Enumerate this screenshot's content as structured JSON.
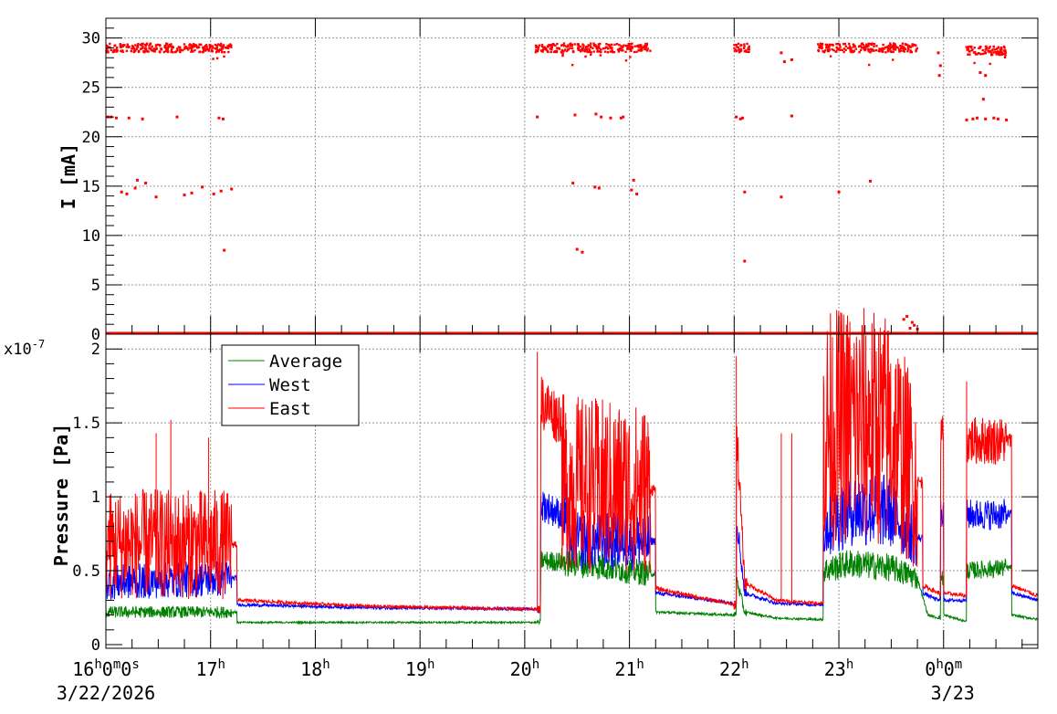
{
  "chart_data": [
    {
      "type": "scatter",
      "panel": "top",
      "ylabel": "I [mA]",
      "ylim": [
        0,
        32
      ],
      "yticks": [
        "0",
        "5",
        "10",
        "15",
        "20",
        "25",
        "30"
      ],
      "xlim_hours": [
        16.0,
        24.9
      ],
      "grid": true,
      "series": [
        {
          "color": "#ff0000",
          "segments": [
            {
              "x": [
                16.0,
                17.2
              ],
              "level": 29
            },
            {
              "x": [
                20.1,
                21.2
              ],
              "level": 29
            },
            {
              "x": [
                22.0,
                22.15
              ],
              "level": 29
            },
            {
              "x": [
                22.8,
                23.75
              ],
              "level": 29
            },
            {
              "x": [
                24.2,
                24.6
              ],
              "level": 28.7
            }
          ],
          "points": [
            [
              16.02,
              22
            ],
            [
              16.05,
              22
            ],
            [
              16.1,
              21.9
            ],
            [
              16.22,
              21.9
            ],
            [
              16.35,
              21.8
            ],
            [
              16.68,
              22
            ],
            [
              17.08,
              21.9
            ],
            [
              17.12,
              21.8
            ],
            [
              16.15,
              14.4
            ],
            [
              16.2,
              14.2
            ],
            [
              16.28,
              14.8
            ],
            [
              16.3,
              15.6
            ],
            [
              16.38,
              15.3
            ],
            [
              16.48,
              13.9
            ],
            [
              16.75,
              14.1
            ],
            [
              16.82,
              14.3
            ],
            [
              16.92,
              14.9
            ],
            [
              17.03,
              14.2
            ],
            [
              17.1,
              14.5
            ],
            [
              17.2,
              14.7
            ],
            [
              17.13,
              8.5
            ],
            [
              20.12,
              22
            ],
            [
              20.48,
              22.2
            ],
            [
              20.68,
              22.3
            ],
            [
              20.73,
              22
            ],
            [
              20.82,
              21.9
            ],
            [
              20.92,
              21.9
            ],
            [
              20.94,
              22
            ],
            [
              20.46,
              15.3
            ],
            [
              20.67,
              14.9
            ],
            [
              20.71,
              14.8
            ],
            [
              21.02,
              14.6
            ],
            [
              21.04,
              15.6
            ],
            [
              21.07,
              14.2
            ],
            [
              20.5,
              8.6
            ],
            [
              20.55,
              8.3
            ],
            [
              22.02,
              22
            ],
            [
              22.06,
              21.8
            ],
            [
              22.08,
              21.9
            ],
            [
              22.1,
              14.4
            ],
            [
              22.1,
              7.4
            ],
            [
              22.45,
              13.9
            ],
            [
              22.55,
              22.1
            ],
            [
              22.45,
              28.5
            ],
            [
              22.48,
              27.6
            ],
            [
              22.55,
              27.8
            ],
            [
              23.0,
              14.4
            ],
            [
              23.3,
              15.5
            ],
            [
              24.22,
              21.7
            ],
            [
              24.28,
              21.8
            ],
            [
              24.32,
              21.9
            ],
            [
              24.38,
              23.8
            ],
            [
              24.4,
              21.8
            ],
            [
              24.48,
              21.9
            ],
            [
              24.52,
              21.8
            ],
            [
              24.6,
              21.7
            ],
            [
              24.4,
              26.2
            ],
            [
              24.35,
              26.5
            ],
            [
              23.95,
              28.5
            ],
            [
              23.97,
              27.2
            ],
            [
              23.96,
              26.2
            ],
            [
              23.62,
              1.5
            ],
            [
              23.65,
              1.8
            ],
            [
              23.7,
              1.2
            ],
            [
              23.72,
              0.9
            ],
            [
              23.75,
              0.5
            ],
            [
              23.68,
              0.6
            ]
          ]
        }
      ]
    },
    {
      "type": "line",
      "panel": "bottom",
      "ylabel": "Pressure [Pa]",
      "yscale_label": "x10",
      "yscale_exp": "-7",
      "ylim": [
        0,
        2.1
      ],
      "yticks": [
        "0",
        "0.5",
        "1",
        "1.5",
        "2"
      ],
      "xlim_hours": [
        16.0,
        24.9
      ],
      "grid": true,
      "legend_position": "top-left",
      "series": [
        {
          "name": "Average",
          "color": "#008000",
          "levels": [
            [
              16.0,
              0.22
            ],
            [
              17.2,
              0.22
            ],
            [
              17.25,
              0.15
            ],
            [
              20.12,
              0.15
            ],
            [
              20.15,
              0.57
            ],
            [
              20.55,
              0.55
            ],
            [
              21.2,
              0.48
            ],
            [
              21.25,
              0.22
            ],
            [
              22.0,
              0.2
            ],
            [
              22.02,
              0.45
            ],
            [
              22.1,
              0.22
            ],
            [
              22.4,
              0.18
            ],
            [
              22.8,
              0.17
            ],
            [
              22.85,
              0.5
            ],
            [
              23.1,
              0.55
            ],
            [
              23.5,
              0.52
            ],
            [
              23.75,
              0.45
            ],
            [
              23.85,
              0.2
            ],
            [
              23.95,
              0.18
            ],
            [
              23.97,
              0.45
            ],
            [
              24.0,
              0.2
            ],
            [
              24.2,
              0.16
            ],
            [
              24.22,
              0.5
            ],
            [
              24.6,
              0.52
            ],
            [
              24.65,
              0.2
            ],
            [
              24.9,
              0.17
            ]
          ]
        },
        {
          "name": "West",
          "color": "#0000ff",
          "levels": [
            [
              16.0,
              0.42
            ],
            [
              17.2,
              0.45
            ],
            [
              17.25,
              0.27
            ],
            [
              18.5,
              0.25
            ],
            [
              20.12,
              0.24
            ],
            [
              20.15,
              0.95
            ],
            [
              20.35,
              0.88
            ],
            [
              20.4,
              0.7
            ],
            [
              21.2,
              0.7
            ],
            [
              21.25,
              0.35
            ],
            [
              22.0,
              0.28
            ],
            [
              22.02,
              0.88
            ],
            [
              22.1,
              0.35
            ],
            [
              22.4,
              0.28
            ],
            [
              22.8,
              0.27
            ],
            [
              22.85,
              0.78
            ],
            [
              23.1,
              0.92
            ],
            [
              23.5,
              0.9
            ],
            [
              23.75,
              0.72
            ],
            [
              23.8,
              0.35
            ],
            [
              23.95,
              0.3
            ],
            [
              23.97,
              0.9
            ],
            [
              24.0,
              0.3
            ],
            [
              24.2,
              0.3
            ],
            [
              24.22,
              0.88
            ],
            [
              24.6,
              0.88
            ],
            [
              24.65,
              0.35
            ],
            [
              24.9,
              0.3
            ]
          ]
        },
        {
          "name": "East",
          "color": "#ff0000",
          "levels": [
            [
              16.0,
              0.68
            ],
            [
              17.2,
              0.68
            ],
            [
              17.25,
              0.3
            ],
            [
              18.5,
              0.26
            ],
            [
              20.12,
              0.24
            ],
            [
              20.15,
              1.65
            ],
            [
              20.3,
              1.55
            ],
            [
              20.35,
              1.1
            ],
            [
              21.2,
              1.05
            ],
            [
              21.25,
              0.38
            ],
            [
              22.0,
              0.27
            ],
            [
              22.02,
              1.5
            ],
            [
              22.1,
              0.42
            ],
            [
              22.4,
              0.3
            ],
            [
              22.8,
              0.28
            ],
            [
              22.85,
              1.45
            ],
            [
              23.1,
              1.5
            ],
            [
              23.5,
              1.45
            ],
            [
              23.75,
              1.1
            ],
            [
              23.8,
              0.4
            ],
            [
              23.95,
              0.35
            ],
            [
              23.97,
              1.4
            ],
            [
              24.0,
              0.35
            ],
            [
              24.2,
              0.33
            ],
            [
              24.22,
              1.38
            ],
            [
              24.6,
              1.38
            ],
            [
              24.65,
              0.4
            ],
            [
              24.9,
              0.33
            ]
          ],
          "spikes": [
            [
              16.48,
              1.43
            ],
            [
              16.62,
              1.52
            ],
            [
              16.98,
              1.4
            ],
            [
              20.12,
              1.98
            ],
            [
              22.02,
              1.95
            ],
            [
              22.45,
              1.43
            ],
            [
              22.55,
              1.43
            ],
            [
              24.22,
              1.78
            ],
            [
              23.45,
              1.72
            ],
            [
              23.3,
              1.7
            ]
          ]
        }
      ]
    }
  ],
  "x_axis": {
    "ticks": [
      {
        "hour": 16,
        "h": "16",
        "h_sup": "h",
        "m": "0",
        "m_sup": "m",
        "s": "0",
        "s_sup": "s"
      },
      {
        "hour": 17,
        "h": "17",
        "h_sup": "h"
      },
      {
        "hour": 18,
        "h": "18",
        "h_sup": "h"
      },
      {
        "hour": 19,
        "h": "19",
        "h_sup": "h"
      },
      {
        "hour": 20,
        "h": "20",
        "h_sup": "h"
      },
      {
        "hour": 21,
        "h": "21",
        "h_sup": "h"
      },
      {
        "hour": 22,
        "h": "22",
        "h_sup": "h"
      },
      {
        "hour": 23,
        "h": "23",
        "h_sup": "h"
      },
      {
        "hour": 24,
        "h": "0",
        "h_sup": "h",
        "m": "0",
        "m_sup": "m"
      }
    ],
    "dates": [
      {
        "hour": 16,
        "label": "3/22/2026"
      },
      {
        "hour": 24,
        "label": "3/23"
      }
    ]
  }
}
